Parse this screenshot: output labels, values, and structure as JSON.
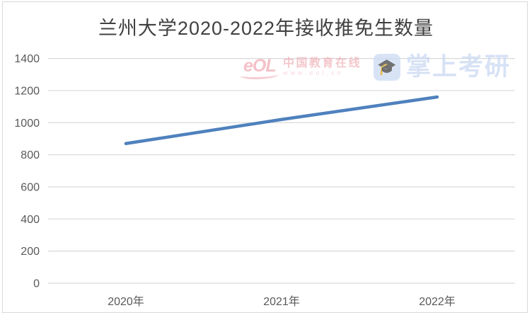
{
  "chart": {
    "title": "兰州大学2020-2022年接收推免生数量"
  },
  "chart_data": {
    "type": "line",
    "categories": [
      "2020年",
      "2021年",
      "2022年"
    ],
    "series": [
      {
        "name": "接收推免生数量",
        "values": [
          870,
          1020,
          1160
        ]
      }
    ],
    "title": "兰州大学2020-2022年接收推免生数量",
    "xlabel": "",
    "ylabel": "",
    "ylim": [
      0,
      1400
    ],
    "ytick_step": 200,
    "yticks": [
      0,
      200,
      400,
      600,
      800,
      1000,
      1200,
      1400
    ],
    "grid": "horizontal-only",
    "legend_position": "none",
    "line_color": "#4f81bd",
    "gridline_color": "#d9d9d9",
    "axis_label_color": "#595959",
    "title_color": "#404040"
  },
  "watermarks": {
    "eol": {
      "logo_text": "eOL",
      "brand_name": "中国教育在线",
      "url": "www.eol.cn",
      "accent_color": "#ee8f9b"
    },
    "kaoyan": {
      "brand_name": "掌上考研",
      "icon_glyph": "🎓",
      "accent_color": "#cad9f2"
    }
  }
}
